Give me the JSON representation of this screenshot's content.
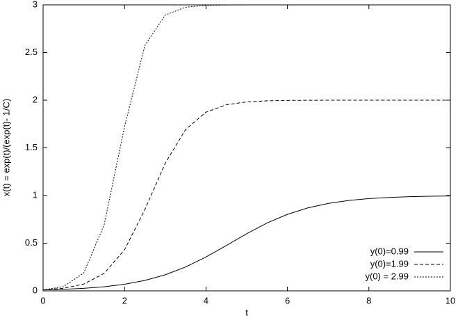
{
  "chart_data": {
    "type": "line",
    "x_label": "t",
    "y_label": "x(t) = exp(t)/(exp(t)- 1/C)",
    "x": [
      0,
      0.5,
      1,
      1.5,
      2,
      2.5,
      3,
      3.5,
      4,
      4.5,
      5,
      5.5,
      6,
      6.5,
      7,
      7.5,
      8,
      8.5,
      9,
      9.5,
      10
    ],
    "series": [
      {
        "name": "y(0)=0.99",
        "color": "#000000",
        "line_style": "solid",
        "values": [
          0.01,
          0.0164,
          0.0267,
          0.0433,
          0.0695,
          0.1096,
          0.1687,
          0.2506,
          0.3555,
          0.4762,
          0.5999,
          0.712,
          0.803,
          0.8705,
          0.9172,
          0.9481,
          0.9679,
          0.9803,
          0.9879,
          0.9926,
          0.9955
        ]
      },
      {
        "name": "y(0)=1.99",
        "color": "#000000",
        "line_style": "dashed",
        "values": [
          0.01,
          0.027,
          0.0716,
          0.1834,
          0.4306,
          0.8543,
          1.3394,
          1.6927,
          1.8749,
          1.952,
          1.9821,
          1.9934,
          1.9976,
          1.9991,
          1.9997,
          1.9999,
          2,
          2,
          2,
          2,
          2
        ]
      },
      {
        "name": "y(0) = 2.99",
        "color": "#000000",
        "line_style": "dotted",
        "values": [
          0.01,
          0.0443,
          0.1888,
          0.6941,
          1.7229,
          2.5742,
          2.8933,
          2.9755,
          2.9945,
          2.9988,
          2.9997,
          2.9999,
          3,
          3,
          3,
          3,
          3,
          3,
          3,
          3,
          3
        ]
      }
    ],
    "xlim": [
      0,
      10
    ],
    "xticks": [
      0,
      2,
      4,
      6,
      8,
      10
    ],
    "ylim": [
      0,
      3
    ],
    "yticks": [
      0,
      0.5,
      1,
      1.5,
      2,
      2.5,
      3
    ],
    "legend": "bottom-right",
    "grid": false
  }
}
